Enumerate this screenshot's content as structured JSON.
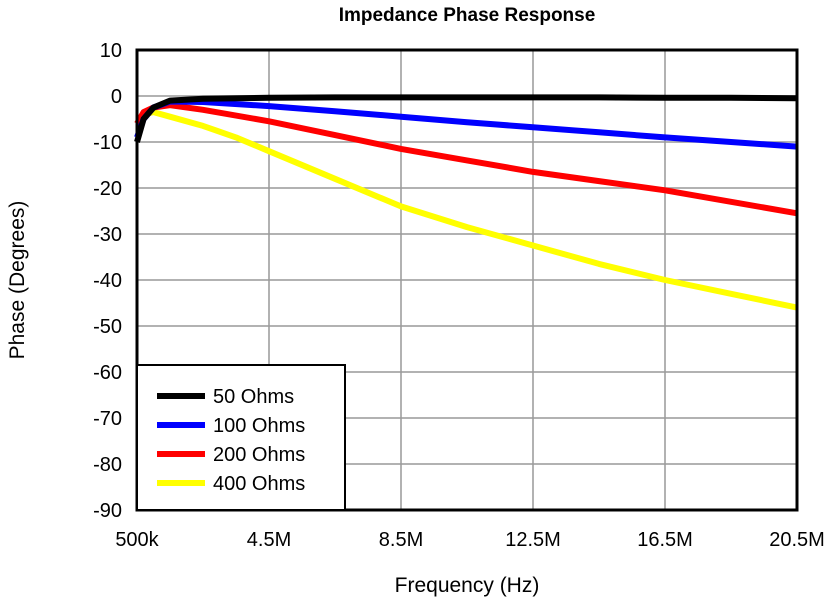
{
  "chart_data": {
    "type": "line",
    "title": "Impedance Phase Response",
    "xlabel": "Frequency (Hz)",
    "ylabel": "Phase (Degrees)",
    "xlim": [
      0.5,
      20.5
    ],
    "ylim": [
      -90,
      10
    ],
    "x_unit": "MHz",
    "x_ticks": [
      0.5,
      4.5,
      8.5,
      12.5,
      16.5,
      20.5
    ],
    "x_tick_labels": [
      "500k",
      "4.5M",
      "8.5M",
      "12.5M",
      "16.5M",
      "20.5M"
    ],
    "y_ticks": [
      10,
      0,
      -10,
      -20,
      -30,
      -40,
      -50,
      -60,
      -70,
      -80,
      -90
    ],
    "y_tick_labels": [
      "10",
      "0",
      "-10",
      "-20",
      "-30",
      "-40",
      "-50",
      "-60",
      "-70",
      "-80",
      "-90"
    ],
    "grid": true,
    "legend_placement": "bottom-left",
    "series": [
      {
        "name": "50 Ohms",
        "color": "#000000",
        "x": [
          0.5,
          0.7,
          1.0,
          1.5,
          2.5,
          4.5,
          6.5,
          8.5,
          10.5,
          12.5,
          14.5,
          16.5,
          18.5,
          20.5
        ],
        "y": [
          -10,
          -5,
          -2.5,
          -1,
          -0.6,
          -0.4,
          -0.3,
          -0.3,
          -0.3,
          -0.3,
          -0.3,
          -0.4,
          -0.4,
          -0.5
        ]
      },
      {
        "name": "100 Ohms",
        "color": "#0000FF",
        "x": [
          0.5,
          0.7,
          1.0,
          1.5,
          2.5,
          4.5,
          6.5,
          8.5,
          10.5,
          12.5,
          14.5,
          16.5,
          18.5,
          20.5
        ],
        "y": [
          -9,
          -5,
          -2.5,
          -1.2,
          -1.3,
          -2.2,
          -3.3,
          -4.5,
          -5.7,
          -6.8,
          -7.9,
          -9,
          -10,
          -11
        ]
      },
      {
        "name": "200 Ohms",
        "color": "#FF0000",
        "x": [
          0.5,
          0.7,
          1.0,
          1.5,
          2.5,
          4.5,
          6.5,
          8.5,
          10.5,
          12.5,
          14.5,
          16.5,
          18.5,
          20.5
        ],
        "y": [
          -6,
          -3.5,
          -2.5,
          -2,
          -3,
          -5.5,
          -8.5,
          -11.5,
          -14,
          -16.5,
          -18.5,
          -20.5,
          -23,
          -25.5
        ]
      },
      {
        "name": "400 Ohms",
        "color": "#FFFF00",
        "x": [
          0.5,
          0.7,
          1.0,
          1.5,
          2.5,
          3.5,
          4.5,
          6.5,
          8.5,
          10.5,
          12.5,
          14.5,
          16.5,
          18.5,
          20.5
        ],
        "y": [
          -6,
          -4,
          -3.5,
          -4.5,
          -6.5,
          -9,
          -12,
          -18,
          -24,
          -28.5,
          -32.5,
          -36.5,
          -40,
          -43,
          -46
        ]
      }
    ]
  }
}
